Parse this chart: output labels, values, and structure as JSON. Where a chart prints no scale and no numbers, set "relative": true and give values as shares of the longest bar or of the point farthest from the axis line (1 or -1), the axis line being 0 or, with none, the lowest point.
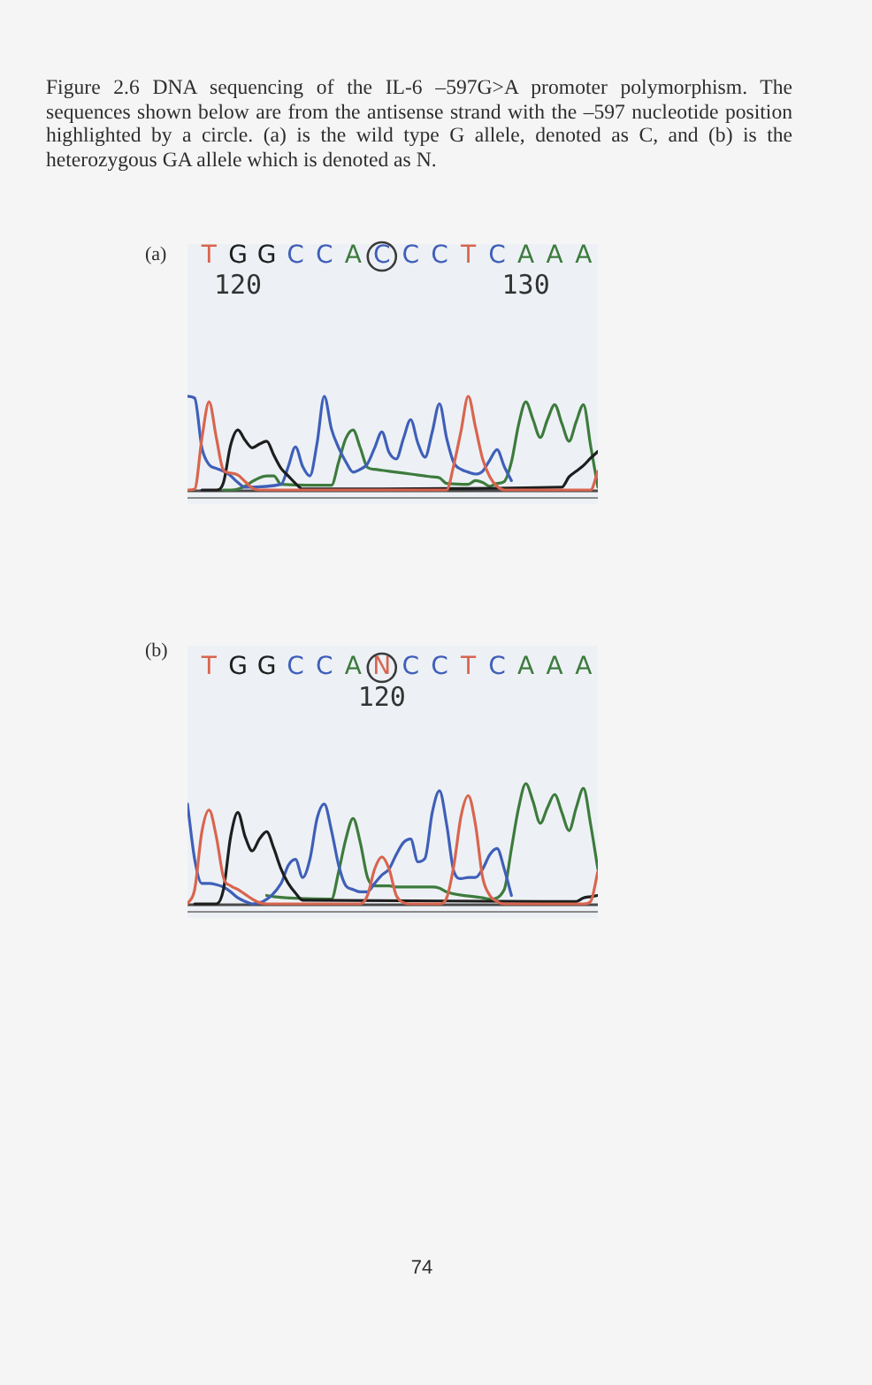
{
  "chart_data": [
    {
      "type": "line",
      "title": "(a)",
      "annotations": [
        "Figure 2.6 DNA sequencing of the IL-6 –597G>A promoter polymorphism. The sequences shown below are from the antisense strand with the –597 nucleotide position highlighted by a circle. (a) is the wild type G allele, denoted as C, and (b) is the heterozygous GA allele which is denoted as N."
      ],
      "relative": true,
      "categories": [
        null,
        null,
        null,
        "T",
        null,
        null,
        null,
        "G\n120",
        null,
        null,
        null,
        "G",
        null,
        null,
        null,
        "C",
        null,
        null,
        null,
        "C",
        null,
        null,
        null,
        "A",
        null,
        null,
        null,
        "C",
        null,
        null,
        null,
        "C",
        null,
        null,
        null,
        "C",
        null,
        null,
        null,
        "T",
        null,
        null,
        null,
        "C",
        null,
        null,
        null,
        "A\n130",
        null,
        null,
        null,
        "A",
        null,
        null,
        null,
        "A",
        null,
        null
      ],
      "series": [
        {
          "color": "#d9654f",
          "values": [
            0,
            0.01,
            0.55,
            0.94,
            0.56,
            0.21,
            0.18,
            0.16,
            0.09,
            0.02,
            0,
            0,
            0,
            0,
            0,
            0,
            0,
            0,
            0,
            0,
            0,
            0,
            0,
            0,
            0,
            0,
            0,
            0,
            0,
            0,
            0,
            0,
            0,
            0,
            0,
            0,
            0,
            0.27,
            0.63,
            1,
            0.67,
            0.33,
            0.14,
            0.04,
            0,
            0,
            0,
            0,
            0,
            0,
            0,
            0,
            0,
            0,
            0,
            0,
            0,
            0.2
          ]
        },
        {
          "color": "#1e1e1e",
          "values": [
            null,
            null,
            0,
            0,
            0,
            0.08,
            0.48,
            0.64,
            0.53,
            0.45,
            0.49,
            0.52,
            0.37,
            0.23,
            0.15,
            0.07,
            0.01,
            null,
            null,
            null,
            null,
            null,
            null,
            null,
            null,
            null,
            null,
            null,
            null,
            null,
            null,
            null,
            null,
            null,
            null,
            null,
            null,
            null,
            null,
            null,
            null,
            null,
            null,
            null,
            null,
            null,
            null,
            null,
            null,
            null,
            null,
            null,
            0.03,
            0.14,
            0.2,
            0.26,
            0.34,
            0.41
          ]
        },
        {
          "color": "#3f5fb8",
          "values": [
            1,
            0.98,
            0.45,
            0.27,
            0.23,
            0.2,
            0.15,
            0.08,
            0.03,
            null,
            null,
            null,
            null,
            0.06,
            0.25,
            0.46,
            0.25,
            0.15,
            0.5,
            1,
            0.65,
            0.45,
            0.3,
            0.19,
            0.22,
            0.28,
            0.45,
            0.62,
            0.4,
            0.33,
            0.55,
            0.75,
            0.5,
            0.35,
            0.62,
            0.92,
            0.55,
            0.29,
            0.22,
            0.19,
            0.17,
            0.2,
            0.32,
            0.43,
            0.25,
            0.1,
            null,
            null,
            null,
            null,
            null,
            null,
            null,
            null,
            null,
            null,
            null,
            null
          ]
        },
        {
          "color": "#3d7b3d",
          "values": [
            null,
            null,
            null,
            null,
            null,
            0,
            0,
            0.01,
            0.04,
            0.09,
            0.13,
            0.15,
            0.15,
            0.06,
            null,
            null,
            null,
            null,
            null,
            null,
            0.05,
            0.3,
            0.55,
            0.64,
            0.45,
            0.24,
            0.22,
            0.21,
            0.2,
            0.19,
            0.18,
            0.17,
            0.16,
            0.15,
            0.14,
            0.13,
            0.07,
            null,
            null,
            0.06,
            0.1,
            0.08,
            0.04,
            0.07,
            0.09,
            0.3,
            0.7,
            0.94,
            0.75,
            0.56,
            0.75,
            0.91,
            0.71,
            0.52,
            0.73,
            0.91,
            0.47,
            0.03
          ]
        }
      ]
    },
    {
      "type": "line",
      "title": "(b)",
      "annotations": [
        "74"
      ],
      "relative": true,
      "categories": [
        null,
        null,
        null,
        "T",
        null,
        null,
        null,
        "G",
        null,
        null,
        null,
        "G",
        null,
        null,
        null,
        "C",
        null,
        null,
        null,
        "C",
        null,
        null,
        null,
        "A",
        null,
        null,
        null,
        "N\n120",
        null,
        null,
        null,
        "C",
        null,
        null,
        null,
        "C",
        null,
        null,
        null,
        "T",
        null,
        null,
        null,
        "C",
        null,
        null,
        null,
        "A",
        null,
        null,
        null,
        "A",
        null,
        null,
        null,
        "A",
        null,
        null
      ],
      "series": [
        {
          "color": "#d9654f",
          "values": [
            0,
            0.12,
            0.6,
            0.78,
            0.56,
            0.22,
            0.15,
            0.12,
            0.08,
            0.04,
            0.01,
            0,
            0,
            0,
            0,
            0,
            0,
            0,
            0,
            0,
            0,
            0,
            0,
            0,
            0,
            0.07,
            0.29,
            0.39,
            0.29,
            0.07,
            0.01,
            0,
            0,
            0,
            0,
            0,
            0.05,
            0.32,
            0.73,
            0.9,
            0.66,
            0.22,
            0.07,
            0.02,
            0,
            0,
            0,
            0,
            0,
            0,
            0,
            0,
            0,
            0,
            0,
            0,
            0.02,
            0.27
          ]
        },
        {
          "color": "#1e1e1e",
          "values": [
            null,
            0,
            0,
            0,
            0,
            0.12,
            0.56,
            0.76,
            0.56,
            0.44,
            0.54,
            0.6,
            0.46,
            0.29,
            0.17,
            0.09,
            0.03,
            null,
            null,
            null,
            null,
            null,
            null,
            null,
            null,
            null,
            null,
            null,
            null,
            null,
            null,
            null,
            null,
            null,
            null,
            null,
            null,
            null,
            null,
            null,
            null,
            null,
            null,
            null,
            null,
            null,
            null,
            null,
            null,
            null,
            null,
            null,
            null,
            null,
            0.02,
            0.05,
            0.06,
            0.07
          ]
        },
        {
          "color": "#3f5fb8",
          "values": [
            0.83,
            0.37,
            0.17,
            0.17,
            0.16,
            0.14,
            0.1,
            0.05,
            0.02,
            0,
            null,
            null,
            null,
            0.17,
            0.32,
            0.37,
            0.22,
            0.37,
            0.71,
            0.83,
            0.61,
            0.32,
            0.15,
            0.12,
            0.1,
            0.1,
            0.17,
            0.24,
            0.29,
            0.41,
            0.51,
            0.54,
            0.35,
            0.38,
            0.76,
            0.94,
            0.66,
            0.27,
            0.21,
            0.22,
            0.22,
            0.29,
            0.41,
            0.46,
            0.29,
            0.07,
            null,
            null,
            null,
            null,
            null,
            null,
            null,
            null,
            null,
            null,
            null,
            null
          ]
        },
        {
          "color": "#3d7b3d",
          "values": [
            null,
            null,
            null,
            null,
            null,
            null,
            null,
            null,
            null,
            null,
            null,
            0.07,
            0.06,
            null,
            null,
            null,
            null,
            null,
            null,
            null,
            0.04,
            0.27,
            0.54,
            0.71,
            0.51,
            0.22,
            0.15,
            0.15,
            0.15,
            0.14,
            0.14,
            0.14,
            0.14,
            0.14,
            0.14,
            0.13,
            0.1,
            null,
            null,
            null,
            null,
            0.05,
            0.04,
            null,
            0.12,
            0.46,
            0.8,
            1,
            0.85,
            0.67,
            0.8,
            0.91,
            0.76,
            0.61,
            0.8,
            0.96,
            0.66,
            0.29
          ]
        }
      ]
    }
  ]
}
